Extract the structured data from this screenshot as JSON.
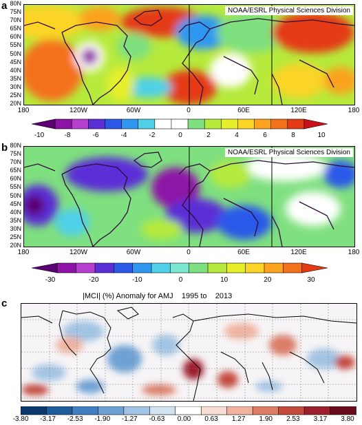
{
  "credit": "NOAA/ESRL Physical Sciences Division",
  "lat_ticks": [
    "80N",
    "75N",
    "70N",
    "65N",
    "60N",
    "55N",
    "50N",
    "45N",
    "40N",
    "35N",
    "30N",
    "25N",
    "20N"
  ],
  "lon_ticks": [
    "180",
    "120W",
    "60W",
    "0",
    "60E",
    "120E",
    "180"
  ],
  "panel_a": {
    "letter": "a",
    "colorbar": {
      "labels": [
        "-10",
        "-8",
        "-6",
        "-4",
        "-2",
        "0",
        "2",
        "4",
        "6",
        "8",
        "10"
      ],
      "colors": [
        "#5b0073",
        "#8e12a6",
        "#b63fd0",
        "#5b2fd6",
        "#2a59e8",
        "#2f97f0",
        "#4fd0e8",
        "#ffffff",
        "#ffffff",
        "#7fe07f",
        "#b6ea3c",
        "#e6ef2a",
        "#fbd426",
        "#fba21f",
        "#f4711c",
        "#e43a14",
        "#c8101a"
      ]
    }
  },
  "panel_b": {
    "letter": "b",
    "colorbar": {
      "labels": [
        "-30",
        "-20",
        "-10",
        "0",
        "10",
        "20",
        "30"
      ],
      "colors": [
        "#5b0073",
        "#8e12a6",
        "#b63fd0",
        "#5b2fd6",
        "#2a59e8",
        "#2f97f0",
        "#4fd0e8",
        "#7de8d2",
        "#7fe07f",
        "#b6ea3c",
        "#e6ef2a",
        "#fbd426",
        "#fba21f",
        "#f4711c",
        "#e43a14"
      ]
    }
  },
  "panel_c": {
    "letter": "c",
    "title": "|MCI| (%) Anomaly for AMJ    1995 to    2013",
    "colorbar": {
      "labels": [
        "-3.80",
        "-3.17",
        "-2.53",
        "-1.90",
        "-1.27",
        "-0.63",
        "0.00",
        "0.63",
        "1.27",
        "1.90",
        "2.53",
        "3.17",
        "3.80"
      ],
      "colors": [
        "#0d3a6e",
        "#1e5c9c",
        "#3f7fbf",
        "#6ea2d4",
        "#a2c4e4",
        "#d2e2f1",
        "#ffffff",
        "#f8ddd3",
        "#efb3a0",
        "#dc7d68",
        "#c44a3e",
        "#9e1f2c",
        "#6a0b1c"
      ]
    }
  }
}
